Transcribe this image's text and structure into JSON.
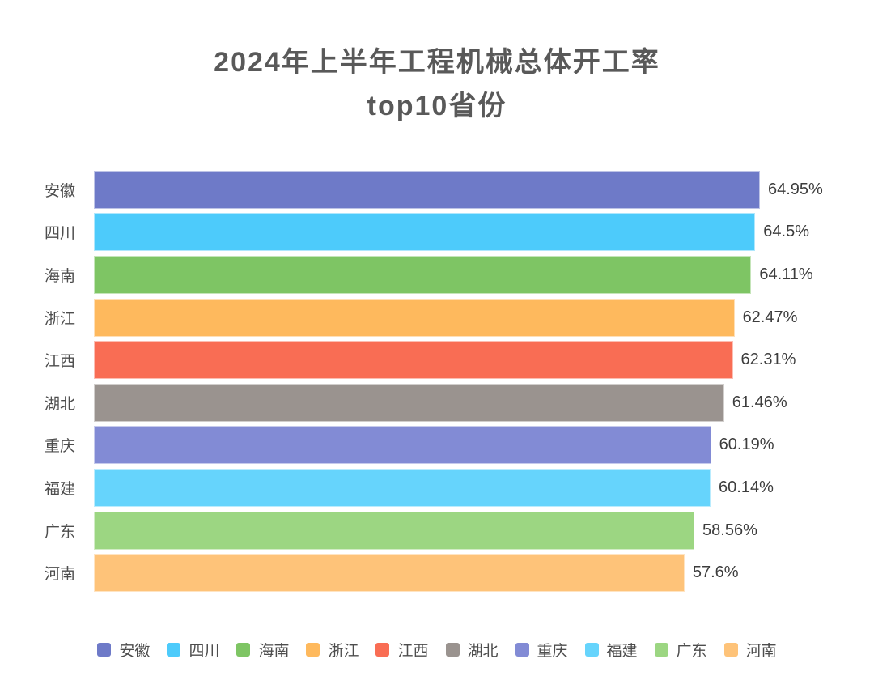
{
  "title": {
    "line1": "2024年上半年工程机械总体开工率",
    "line2": "top10省份"
  },
  "chart_data": {
    "type": "bar",
    "orientation": "horizontal",
    "title": "2024年上半年工程机械总体开工率 top10省份",
    "categories": [
      "安徽",
      "四川",
      "海南",
      "浙江",
      "江西",
      "湖北",
      "重庆",
      "福建",
      "广东",
      "河南"
    ],
    "values": [
      64.95,
      64.5,
      64.11,
      62.47,
      62.31,
      61.46,
      60.19,
      60.14,
      58.56,
      57.6
    ],
    "value_labels": [
      "64.95%",
      "64.5%",
      "64.11%",
      "62.47%",
      "62.31%",
      "61.46%",
      "60.19%",
      "60.14%",
      "58.56%",
      "57.6%"
    ],
    "bar_colors": [
      "#6E7AC8",
      "#4DCBFB",
      "#7EC564",
      "#FEB95D",
      "#F96D54",
      "#9A938F",
      "#828BD5",
      "#66D4FC",
      "#9CD682",
      "#FEC379"
    ],
    "xlabel": "",
    "ylabel": "",
    "xlim": [
      0,
      65
    ],
    "grid": false,
    "value_labels_shown": true,
    "legend_position": "bottom",
    "legend": [
      {
        "label": "安徽",
        "color": "#6E7AC8"
      },
      {
        "label": "四川",
        "color": "#4DCBFB"
      },
      {
        "label": "海南",
        "color": "#7EC564"
      },
      {
        "label": "浙江",
        "color": "#FEB95D"
      },
      {
        "label": "江西",
        "color": "#F96D54"
      },
      {
        "label": "湖北",
        "color": "#9A938F"
      },
      {
        "label": "重庆",
        "color": "#828BD5"
      },
      {
        "label": "福建",
        "color": "#66D4FC"
      },
      {
        "label": "广东",
        "color": "#9CD682"
      },
      {
        "label": "河南",
        "color": "#FEC379"
      }
    ],
    "title_color": "#595959",
    "category_label_color": "#4d4d4d",
    "value_label_color": "#3d3d3d",
    "background_color": "#ffffff"
  }
}
